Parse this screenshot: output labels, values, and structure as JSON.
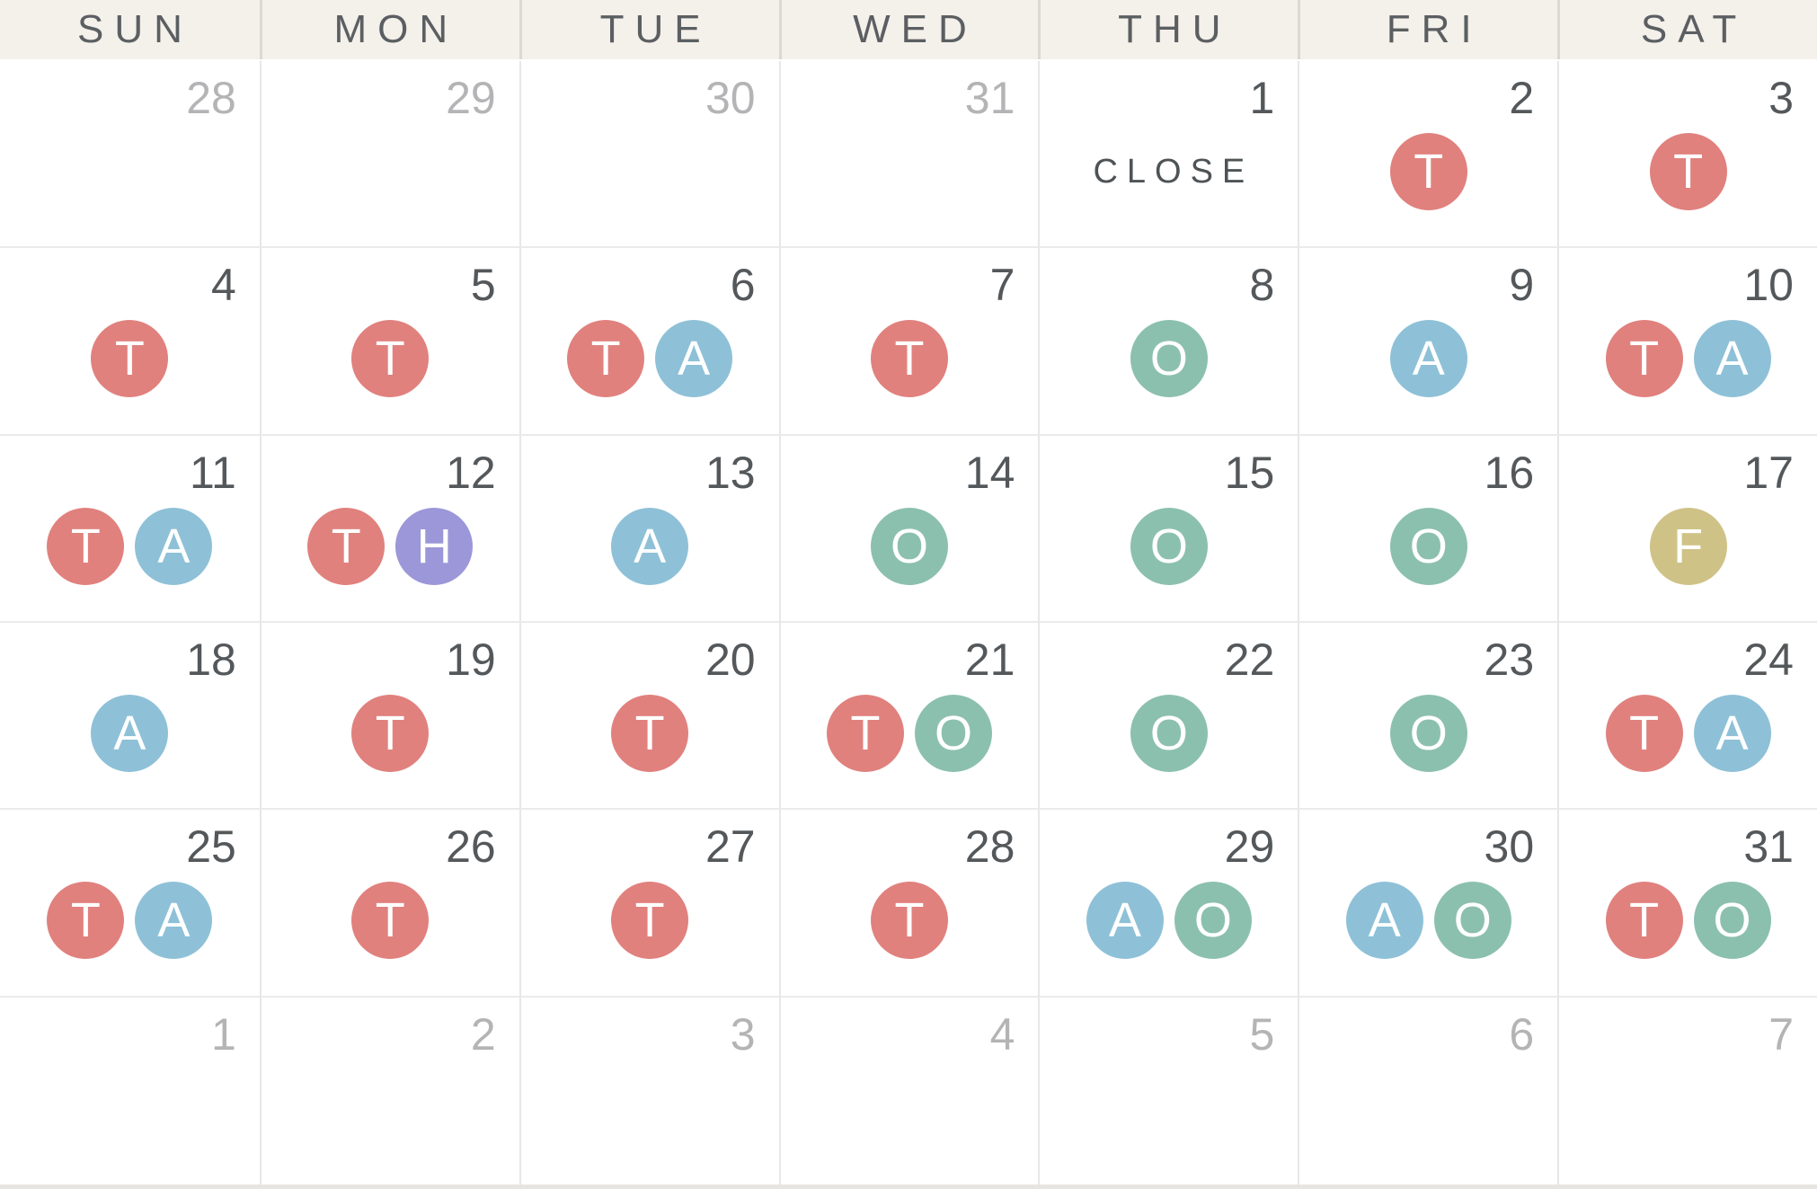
{
  "calendar": {
    "weekdays": [
      "SUN",
      "MON",
      "TUE",
      "WED",
      "THU",
      "FRI",
      "SAT"
    ],
    "weeks": [
      [
        {
          "day": "28",
          "outside": true
        },
        {
          "day": "29",
          "outside": true
        },
        {
          "day": "30",
          "outside": true
        },
        {
          "day": "31",
          "outside": true
        },
        {
          "day": "1",
          "note": "CLOSE"
        },
        {
          "day": "2",
          "badges": [
            "T"
          ]
        },
        {
          "day": "3",
          "badges": [
            "T"
          ]
        }
      ],
      [
        {
          "day": "4",
          "badges": [
            "T"
          ]
        },
        {
          "day": "5",
          "badges": [
            "T"
          ]
        },
        {
          "day": "6",
          "badges": [
            "T",
            "A"
          ]
        },
        {
          "day": "7",
          "badges": [
            "T"
          ]
        },
        {
          "day": "8",
          "badges": [
            "O"
          ]
        },
        {
          "day": "9",
          "badges": [
            "A"
          ]
        },
        {
          "day": "10",
          "badges": [
            "T",
            "A"
          ]
        }
      ],
      [
        {
          "day": "11",
          "badges": [
            "T",
            "A"
          ]
        },
        {
          "day": "12",
          "badges": [
            "T",
            "H"
          ]
        },
        {
          "day": "13",
          "badges": [
            "A"
          ]
        },
        {
          "day": "14",
          "badges": [
            "O"
          ]
        },
        {
          "day": "15",
          "badges": [
            "O"
          ]
        },
        {
          "day": "16",
          "badges": [
            "O"
          ]
        },
        {
          "day": "17",
          "badges": [
            "F"
          ]
        }
      ],
      [
        {
          "day": "18",
          "badges": [
            "A"
          ]
        },
        {
          "day": "19",
          "badges": [
            "T"
          ]
        },
        {
          "day": "20",
          "badges": [
            "T"
          ]
        },
        {
          "day": "21",
          "badges": [
            "T",
            "O"
          ]
        },
        {
          "day": "22",
          "badges": [
            "O"
          ]
        },
        {
          "day": "23",
          "badges": [
            "O"
          ]
        },
        {
          "day": "24",
          "badges": [
            "T",
            "A"
          ]
        }
      ],
      [
        {
          "day": "25",
          "badges": [
            "T",
            "A"
          ]
        },
        {
          "day": "26",
          "badges": [
            "T"
          ]
        },
        {
          "day": "27",
          "badges": [
            "T"
          ]
        },
        {
          "day": "28",
          "badges": [
            "T"
          ]
        },
        {
          "day": "29",
          "badges": [
            "A",
            "O"
          ]
        },
        {
          "day": "30",
          "badges": [
            "A",
            "O"
          ]
        },
        {
          "day": "31",
          "badges": [
            "T",
            "O"
          ]
        }
      ],
      [
        {
          "day": "1",
          "outside": true
        },
        {
          "day": "2",
          "outside": true
        },
        {
          "day": "3",
          "outside": true
        },
        {
          "day": "4",
          "outside": true
        },
        {
          "day": "5",
          "outside": true
        },
        {
          "day": "6",
          "outside": true
        },
        {
          "day": "7",
          "outside": true
        }
      ]
    ],
    "badge_colors": {
      "T": "#e0817e",
      "A": "#8ec1d7",
      "O": "#8cc0ae",
      "H": "#9b97d8",
      "F": "#cfc287"
    },
    "colors": {
      "header_bg": "#f4f0ea",
      "header_text": "#5b5f62",
      "day_text": "#54585b",
      "outside_day_text": "#b4b4b6",
      "note_text": "#4e5356",
      "grid_line": "#e7e7e7"
    }
  }
}
